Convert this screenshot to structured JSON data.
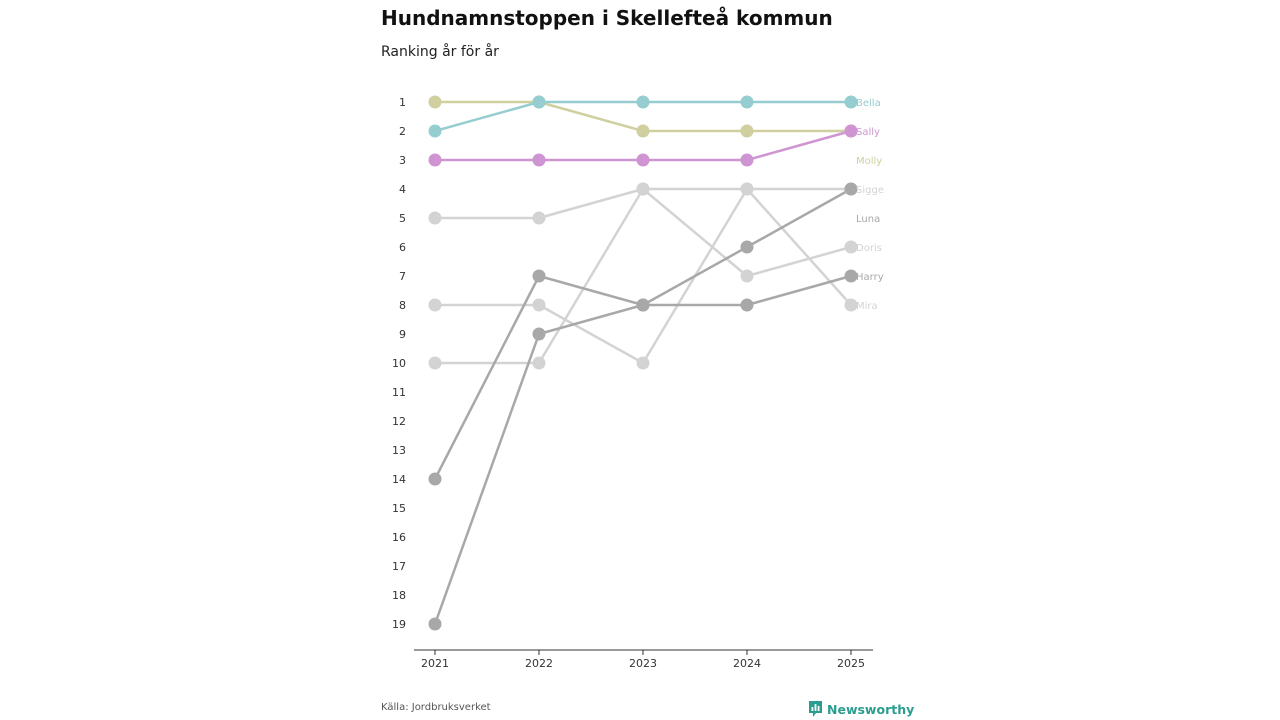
{
  "header": {
    "title": "Hundnamnstoppen i Skellefteå kommun",
    "subtitle": "Ranking år för år"
  },
  "footer": {
    "source": "Källa: Jordbruksverket",
    "brand": "Newsworthy",
    "brand_icon": "chart-bar-icon",
    "brand_color": "#2a9d8f"
  },
  "chart_data": {
    "type": "line",
    "title": "Hundnamnstoppen i Skellefteå kommun",
    "subtitle": "Ranking år för år",
    "xlabel": "",
    "ylabel": "",
    "x": [
      "2021",
      "2022",
      "2023",
      "2024",
      "2025"
    ],
    "y_axis": {
      "range": [
        1,
        19
      ],
      "reversed": true,
      "ticks": [
        1,
        2,
        3,
        4,
        5,
        6,
        7,
        8,
        9,
        10,
        11,
        12,
        13,
        14,
        15,
        16,
        17,
        18,
        19
      ]
    },
    "grid": false,
    "legend": "end-labels-right",
    "series": [
      {
        "name": "Bella",
        "color": "#96cdd0",
        "values": [
          2,
          1,
          1,
          1,
          1
        ]
      },
      {
        "name": "Sally",
        "color": "#cf95d3",
        "values": [
          3,
          3,
          3,
          3,
          2
        ]
      },
      {
        "name": "Molly",
        "color": "#cfcf9f",
        "values": [
          1,
          1,
          2,
          2,
          2
        ]
      },
      {
        "name": "Sigge",
        "color": "#d3d3d3",
        "values": [
          5,
          5,
          4,
          4,
          4
        ]
      },
      {
        "name": "Luna",
        "color": "#a8a8a8",
        "values": [
          19,
          9,
          8,
          6,
          4
        ]
      },
      {
        "name": "Doris",
        "color": "#d3d3d3",
        "values": [
          10,
          10,
          4,
          7,
          6
        ]
      },
      {
        "name": "Harry",
        "color": "#a8a8a8",
        "values": [
          14,
          7,
          8,
          8,
          7
        ]
      },
      {
        "name": "Mira",
        "color": "#d3d3d3",
        "values": [
          8,
          8,
          10,
          4,
          8
        ]
      }
    ],
    "end_labels": [
      {
        "name": "Bella",
        "rank": 1
      },
      {
        "name": "Sally",
        "rank": 2
      },
      {
        "name": "Molly",
        "rank": 3
      },
      {
        "name": "Sigge",
        "rank": 4
      },
      {
        "name": "Luna",
        "rank": 5
      },
      {
        "name": "Doris",
        "rank": 6
      },
      {
        "name": "Harry",
        "rank": 7
      },
      {
        "name": "Mira",
        "rank": 8
      }
    ]
  }
}
